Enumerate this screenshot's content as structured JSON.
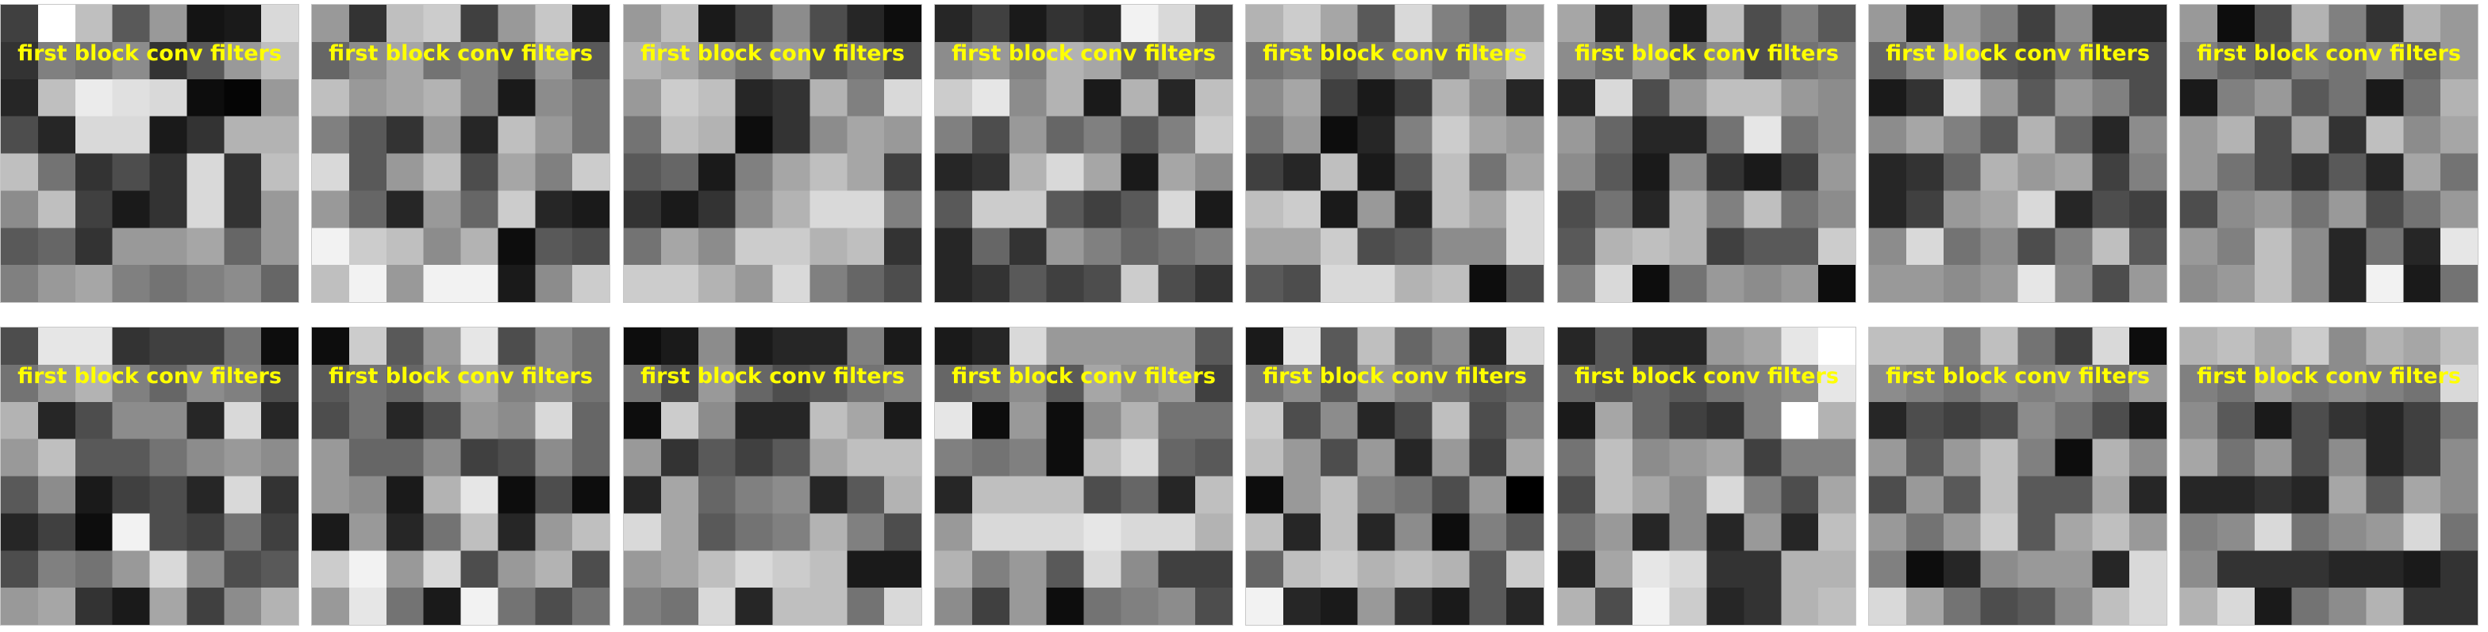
{
  "figure": {
    "panel_title": "first block conv filters",
    "colormap": "gray",
    "title_color": "#ffff00",
    "panel_border_color": "#c8c8c8",
    "grid_rows": 2,
    "grid_cols": 8
  },
  "filters": [
    [
      [
        0.25,
        1.0,
        0.75,
        0.35,
        0.6,
        0.08,
        0.1,
        0.85
      ],
      [
        0.2,
        0.5,
        0.45,
        0.55,
        0.2,
        0.35,
        0.6,
        0.75
      ],
      [
        0.15,
        0.75,
        0.92,
        0.88,
        0.85,
        0.05,
        0.02,
        0.6
      ],
      [
        0.3,
        0.15,
        0.85,
        0.85,
        0.1,
        0.2,
        0.7,
        0.7
      ],
      [
        0.75,
        0.45,
        0.2,
        0.3,
        0.2,
        0.85,
        0.2,
        0.75
      ],
      [
        0.55,
        0.75,
        0.25,
        0.1,
        0.2,
        0.85,
        0.2,
        0.6
      ],
      [
        0.35,
        0.4,
        0.2,
        0.6,
        0.6,
        0.65,
        0.4,
        0.6
      ],
      [
        0.5,
        0.6,
        0.65,
        0.5,
        0.45,
        0.5,
        0.55,
        0.4
      ]
    ],
    [
      [
        0.6,
        0.2,
        0.75,
        0.8,
        0.25,
        0.6,
        0.78,
        0.1
      ],
      [
        0.4,
        0.55,
        0.65,
        0.45,
        0.5,
        0.35,
        0.6,
        0.35
      ],
      [
        0.75,
        0.6,
        0.65,
        0.7,
        0.5,
        0.1,
        0.55,
        0.45
      ],
      [
        0.5,
        0.35,
        0.2,
        0.6,
        0.15,
        0.75,
        0.6,
        0.45
      ],
      [
        0.85,
        0.35,
        0.6,
        0.75,
        0.3,
        0.65,
        0.5,
        0.8
      ],
      [
        0.6,
        0.4,
        0.15,
        0.6,
        0.4,
        0.8,
        0.15,
        0.1
      ],
      [
        0.95,
        0.8,
        0.75,
        0.55,
        0.7,
        0.05,
        0.35,
        0.3
      ],
      [
        0.75,
        0.95,
        0.6,
        0.95,
        0.95,
        0.1,
        0.55,
        0.8
      ]
    ],
    [
      [
        0.6,
        0.75,
        0.1,
        0.25,
        0.55,
        0.3,
        0.15,
        0.05
      ],
      [
        0.7,
        0.65,
        0.55,
        0.45,
        0.6,
        0.35,
        0.45,
        0.3
      ],
      [
        0.6,
        0.8,
        0.75,
        0.15,
        0.2,
        0.7,
        0.5,
        0.85
      ],
      [
        0.45,
        0.75,
        0.7,
        0.05,
        0.2,
        0.55,
        0.65,
        0.6
      ],
      [
        0.35,
        0.4,
        0.1,
        0.5,
        0.65,
        0.75,
        0.65,
        0.25
      ],
      [
        0.2,
        0.1,
        0.2,
        0.55,
        0.7,
        0.85,
        0.85,
        0.5
      ],
      [
        0.45,
        0.65,
        0.55,
        0.8,
        0.8,
        0.7,
        0.75,
        0.2
      ],
      [
        0.8,
        0.8,
        0.7,
        0.6,
        0.85,
        0.5,
        0.4,
        0.3
      ]
    ],
    [
      [
        0.15,
        0.25,
        0.1,
        0.2,
        0.15,
        0.95,
        0.85,
        0.3
      ],
      [
        0.55,
        0.6,
        0.5,
        0.7,
        0.65,
        0.4,
        0.5,
        0.45
      ],
      [
        0.8,
        0.9,
        0.55,
        0.7,
        0.1,
        0.7,
        0.15,
        0.75
      ],
      [
        0.5,
        0.3,
        0.6,
        0.4,
        0.5,
        0.35,
        0.5,
        0.8
      ],
      [
        0.15,
        0.2,
        0.7,
        0.85,
        0.65,
        0.1,
        0.65,
        0.55
      ],
      [
        0.35,
        0.8,
        0.8,
        0.35,
        0.25,
        0.35,
        0.85,
        0.1
      ],
      [
        0.15,
        0.4,
        0.2,
        0.6,
        0.5,
        0.4,
        0.45,
        0.5
      ],
      [
        0.15,
        0.2,
        0.35,
        0.25,
        0.3,
        0.8,
        0.3,
        0.2
      ]
    ],
    [
      [
        0.7,
        0.8,
        0.65,
        0.35,
        0.85,
        0.5,
        0.35,
        0.6
      ],
      [
        0.45,
        0.5,
        0.35,
        0.45,
        0.55,
        0.45,
        0.6,
        0.75
      ],
      [
        0.55,
        0.65,
        0.25,
        0.1,
        0.25,
        0.7,
        0.55,
        0.15
      ],
      [
        0.45,
        0.6,
        0.05,
        0.15,
        0.5,
        0.8,
        0.65,
        0.6
      ],
      [
        0.25,
        0.15,
        0.75,
        0.1,
        0.35,
        0.75,
        0.45,
        0.65
      ],
      [
        0.75,
        0.8,
        0.1,
        0.6,
        0.15,
        0.75,
        0.65,
        0.85
      ],
      [
        0.65,
        0.65,
        0.8,
        0.3,
        0.35,
        0.55,
        0.55,
        0.85
      ],
      [
        0.35,
        0.3,
        0.85,
        0.85,
        0.7,
        0.75,
        0.05,
        0.3
      ]
    ],
    [
      [
        0.65,
        0.15,
        0.6,
        0.1,
        0.75,
        0.3,
        0.5,
        0.35
      ],
      [
        0.55,
        0.45,
        0.6,
        0.4,
        0.55,
        0.3,
        0.45,
        0.5
      ],
      [
        0.15,
        0.85,
        0.3,
        0.6,
        0.75,
        0.75,
        0.6,
        0.55
      ],
      [
        0.6,
        0.4,
        0.15,
        0.15,
        0.45,
        0.9,
        0.45,
        0.55
      ],
      [
        0.55,
        0.35,
        0.1,
        0.55,
        0.2,
        0.1,
        0.25,
        0.6
      ],
      [
        0.3,
        0.45,
        0.15,
        0.7,
        0.5,
        0.75,
        0.45,
        0.55
      ],
      [
        0.35,
        0.7,
        0.75,
        0.7,
        0.25,
        0.35,
        0.35,
        0.8
      ],
      [
        0.5,
        0.85,
        0.05,
        0.45,
        0.6,
        0.55,
        0.6,
        0.05
      ]
    ],
    [
      [
        0.6,
        0.1,
        0.6,
        0.5,
        0.25,
        0.55,
        0.15,
        0.15
      ],
      [
        0.4,
        0.55,
        0.65,
        0.35,
        0.3,
        0.45,
        0.3,
        0.3
      ],
      [
        0.1,
        0.2,
        0.85,
        0.6,
        0.35,
        0.6,
        0.5,
        0.3
      ],
      [
        0.55,
        0.65,
        0.5,
        0.35,
        0.7,
        0.4,
        0.15,
        0.55
      ],
      [
        0.15,
        0.2,
        0.4,
        0.7,
        0.6,
        0.65,
        0.25,
        0.5
      ],
      [
        0.15,
        0.25,
        0.6,
        0.65,
        0.85,
        0.15,
        0.3,
        0.25
      ],
      [
        0.55,
        0.85,
        0.45,
        0.55,
        0.3,
        0.5,
        0.75,
        0.35
      ],
      [
        0.6,
        0.6,
        0.55,
        0.6,
        0.9,
        0.55,
        0.3,
        0.6
      ]
    ],
    [
      [
        0.6,
        0.05,
        0.3,
        0.7,
        0.5,
        0.2,
        0.7,
        0.6
      ],
      [
        0.5,
        0.4,
        0.35,
        0.5,
        0.45,
        0.55,
        0.4,
        0.6
      ],
      [
        0.1,
        0.5,
        0.6,
        0.35,
        0.45,
        0.1,
        0.45,
        0.7
      ],
      [
        0.6,
        0.7,
        0.3,
        0.65,
        0.2,
        0.75,
        0.55,
        0.65
      ],
      [
        0.6,
        0.45,
        0.3,
        0.2,
        0.35,
        0.15,
        0.65,
        0.45
      ],
      [
        0.3,
        0.55,
        0.6,
        0.45,
        0.6,
        0.3,
        0.45,
        0.6
      ],
      [
        0.6,
        0.5,
        0.75,
        0.55,
        0.15,
        0.45,
        0.15,
        0.9
      ],
      [
        0.55,
        0.6,
        0.75,
        0.55,
        0.15,
        0.95,
        0.1,
        0.45
      ]
    ],
    [
      [
        0.3,
        0.9,
        0.9,
        0.2,
        0.25,
        0.25,
        0.45,
        0.05
      ],
      [
        0.45,
        0.6,
        0.7,
        0.5,
        0.4,
        0.55,
        0.5,
        0.3
      ],
      [
        0.7,
        0.15,
        0.3,
        0.55,
        0.55,
        0.15,
        0.85,
        0.15
      ],
      [
        0.6,
        0.75,
        0.35,
        0.35,
        0.45,
        0.55,
        0.6,
        0.55
      ],
      [
        0.35,
        0.55,
        0.1,
        0.25,
        0.3,
        0.15,
        0.85,
        0.2
      ],
      [
        0.15,
        0.25,
        0.05,
        0.95,
        0.3,
        0.25,
        0.45,
        0.25
      ],
      [
        0.3,
        0.5,
        0.45,
        0.6,
        0.85,
        0.55,
        0.3,
        0.35
      ],
      [
        0.6,
        0.65,
        0.2,
        0.1,
        0.65,
        0.25,
        0.55,
        0.7
      ]
    ],
    [
      [
        0.05,
        0.8,
        0.35,
        0.6,
        0.9,
        0.3,
        0.55,
        0.45
      ],
      [
        0.35,
        0.45,
        0.4,
        0.55,
        0.65,
        0.5,
        0.55,
        0.45
      ],
      [
        0.3,
        0.45,
        0.15,
        0.3,
        0.6,
        0.55,
        0.85,
        0.4
      ],
      [
        0.6,
        0.4,
        0.4,
        0.55,
        0.25,
        0.3,
        0.55,
        0.4
      ],
      [
        0.6,
        0.55,
        0.1,
        0.7,
        0.9,
        0.05,
        0.3,
        0.05
      ],
      [
        0.1,
        0.6,
        0.15,
        0.45,
        0.75,
        0.15,
        0.6,
        0.75
      ],
      [
        0.8,
        0.95,
        0.6,
        0.85,
        0.3,
        0.6,
        0.7,
        0.3
      ],
      [
        0.6,
        0.9,
        0.45,
        0.1,
        0.95,
        0.45,
        0.3,
        0.45
      ]
    ],
    [
      [
        0.05,
        0.1,
        0.55,
        0.1,
        0.15,
        0.15,
        0.5,
        0.1
      ],
      [
        0.45,
        0.3,
        0.6,
        0.4,
        0.3,
        0.35,
        0.45,
        0.5
      ],
      [
        0.05,
        0.8,
        0.55,
        0.15,
        0.15,
        0.75,
        0.65,
        0.1
      ],
      [
        0.6,
        0.2,
        0.35,
        0.25,
        0.35,
        0.65,
        0.75,
        0.75
      ],
      [
        0.15,
        0.65,
        0.4,
        0.5,
        0.55,
        0.15,
        0.35,
        0.7
      ],
      [
        0.85,
        0.65,
        0.35,
        0.45,
        0.5,
        0.7,
        0.5,
        0.3
      ],
      [
        0.6,
        0.65,
        0.75,
        0.85,
        0.8,
        0.75,
        0.1,
        0.1
      ],
      [
        0.5,
        0.45,
        0.85,
        0.15,
        0.75,
        0.75,
        0.45,
        0.85
      ]
    ],
    [
      [
        0.1,
        0.15,
        0.85,
        0.6,
        0.6,
        0.6,
        0.6,
        0.35
      ],
      [
        0.4,
        0.45,
        0.55,
        0.35,
        0.65,
        0.55,
        0.6,
        0.25
      ],
      [
        0.9,
        0.05,
        0.6,
        0.05,
        0.55,
        0.7,
        0.45,
        0.45
      ],
      [
        0.5,
        0.45,
        0.5,
        0.05,
        0.75,
        0.85,
        0.4,
        0.35
      ],
      [
        0.15,
        0.75,
        0.75,
        0.75,
        0.3,
        0.4,
        0.15,
        0.75
      ],
      [
        0.6,
        0.85,
        0.85,
        0.85,
        0.9,
        0.85,
        0.85,
        0.7
      ],
      [
        0.7,
        0.5,
        0.6,
        0.35,
        0.85,
        0.55,
        0.25,
        0.25
      ],
      [
        0.55,
        0.25,
        0.6,
        0.05,
        0.45,
        0.5,
        0.55,
        0.3
      ]
    ],
    [
      [
        0.1,
        0.9,
        0.35,
        0.75,
        0.4,
        0.55,
        0.15,
        0.85
      ],
      [
        0.45,
        0.55,
        0.35,
        0.6,
        0.5,
        0.45,
        0.35,
        0.4
      ],
      [
        0.8,
        0.3,
        0.55,
        0.15,
        0.3,
        0.75,
        0.3,
        0.5
      ],
      [
        0.75,
        0.6,
        0.3,
        0.6,
        0.15,
        0.6,
        0.25,
        0.65
      ],
      [
        0.05,
        0.6,
        0.75,
        0.5,
        0.45,
        0.3,
        0.6,
        0.0
      ],
      [
        0.75,
        0.15,
        0.75,
        0.15,
        0.55,
        0.05,
        0.5,
        0.35
      ],
      [
        0.4,
        0.75,
        0.8,
        0.7,
        0.75,
        0.7,
        0.35,
        0.8
      ],
      [
        0.95,
        0.15,
        0.1,
        0.6,
        0.2,
        0.1,
        0.35,
        0.15
      ]
    ],
    [
      [
        0.15,
        0.35,
        0.15,
        0.15,
        0.6,
        0.65,
        0.9,
        1.0
      ],
      [
        0.4,
        0.35,
        0.4,
        0.35,
        0.45,
        0.5,
        0.55,
        0.9
      ],
      [
        0.1,
        0.65,
        0.4,
        0.25,
        0.2,
        0.5,
        1.0,
        0.7
      ],
      [
        0.45,
        0.75,
        0.55,
        0.6,
        0.65,
        0.25,
        0.5,
        0.5
      ],
      [
        0.3,
        0.75,
        0.65,
        0.55,
        0.85,
        0.5,
        0.3,
        0.65
      ],
      [
        0.45,
        0.6,
        0.15,
        0.55,
        0.15,
        0.6,
        0.15,
        0.75
      ],
      [
        0.15,
        0.65,
        0.9,
        0.85,
        0.2,
        0.2,
        0.7,
        0.7
      ],
      [
        0.7,
        0.3,
        0.95,
        0.8,
        0.15,
        0.2,
        0.7,
        0.75
      ]
    ],
    [
      [
        0.75,
        0.75,
        0.5,
        0.75,
        0.45,
        0.25,
        0.85,
        0.05
      ],
      [
        0.55,
        0.5,
        0.45,
        0.55,
        0.5,
        0.55,
        0.45,
        0.6
      ],
      [
        0.15,
        0.3,
        0.25,
        0.3,
        0.55,
        0.45,
        0.3,
        0.1
      ],
      [
        0.6,
        0.35,
        0.6,
        0.75,
        0.5,
        0.05,
        0.7,
        0.55
      ],
      [
        0.3,
        0.6,
        0.35,
        0.75,
        0.35,
        0.35,
        0.65,
        0.15
      ],
      [
        0.6,
        0.45,
        0.6,
        0.8,
        0.35,
        0.65,
        0.75,
        0.6
      ],
      [
        0.5,
        0.05,
        0.15,
        0.55,
        0.6,
        0.6,
        0.15,
        0.85
      ],
      [
        0.85,
        0.65,
        0.45,
        0.3,
        0.35,
        0.55,
        0.75,
        0.85
      ]
    ],
    [
      [
        0.7,
        0.75,
        0.65,
        0.8,
        0.55,
        0.7,
        0.65,
        0.75
      ],
      [
        0.5,
        0.45,
        0.6,
        0.5,
        0.55,
        0.5,
        0.45,
        0.85
      ],
      [
        0.55,
        0.35,
        0.1,
        0.3,
        0.2,
        0.15,
        0.25,
        0.45
      ],
      [
        0.65,
        0.45,
        0.6,
        0.3,
        0.55,
        0.15,
        0.25,
        0.55
      ],
      [
        0.15,
        0.15,
        0.2,
        0.15,
        0.65,
        0.35,
        0.65,
        0.55
      ],
      [
        0.5,
        0.55,
        0.85,
        0.45,
        0.55,
        0.6,
        0.85,
        0.45
      ],
      [
        0.55,
        0.2,
        0.2,
        0.2,
        0.15,
        0.15,
        0.1,
        0.2
      ],
      [
        0.7,
        0.85,
        0.1,
        0.45,
        0.55,
        0.7,
        0.2,
        0.2
      ]
    ]
  ]
}
